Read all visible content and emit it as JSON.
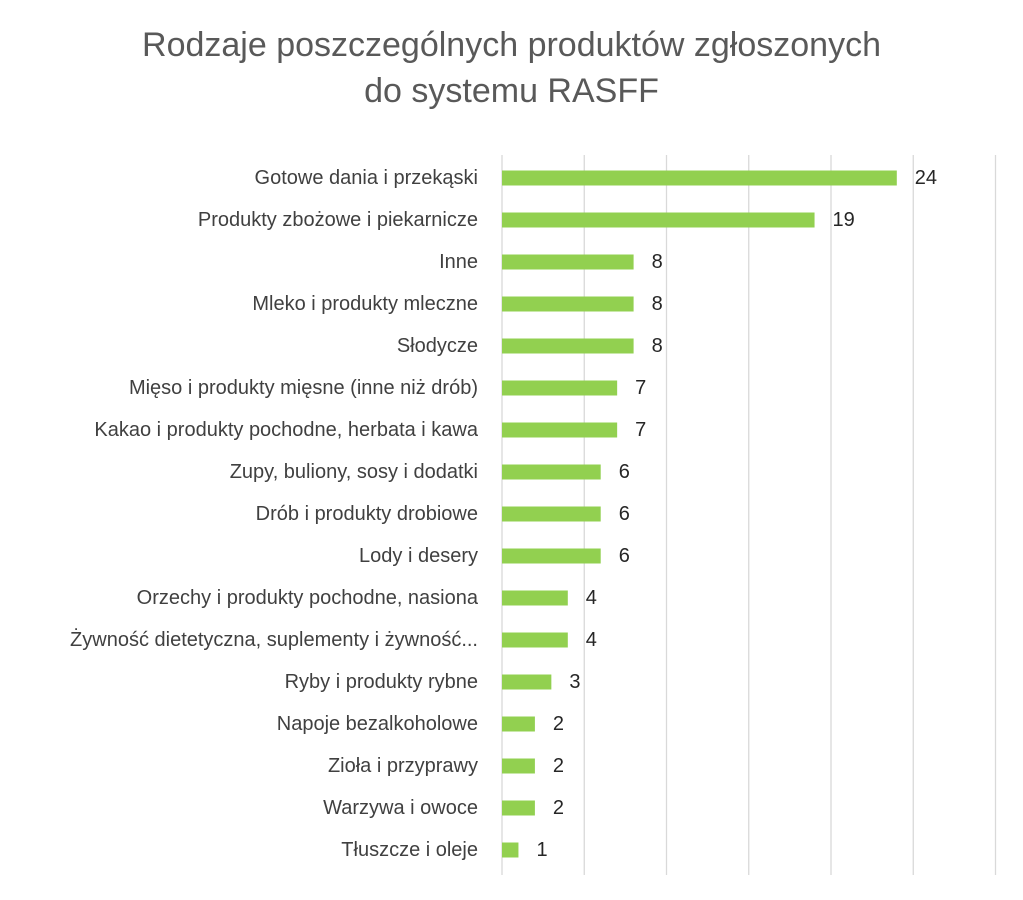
{
  "title_line1": "Rodzaje poszczególnych produktów zgłoszonych",
  "title_line2": "do systemu RASFF",
  "chart_data": {
    "type": "bar",
    "orientation": "horizontal",
    "title": "Rodzaje poszczególnych produktów zgłoszonych do systemu RASFF",
    "categories": [
      "Gotowe dania i przekąski",
      "Produkty zbożowe i piekarnicze",
      "Inne",
      "Mleko i produkty mleczne",
      "Słodycze",
      "Mięso i produkty mięsne (inne niż drób)",
      "Kakao i produkty pochodne, herbata i kawa",
      "Zupy, buliony, sosy i dodatki",
      "Drób i produkty drobiowe",
      "Lody i desery",
      "Orzechy i produkty pochodne, nasiona",
      "Żywność dietetyczna, suplementy i żywność...",
      "Ryby i produkty rybne",
      "Napoje bezalkoholowe",
      "Zioła i przyprawy",
      "Warzywa i owoce",
      "Tłuszcze i oleje"
    ],
    "values": [
      24,
      19,
      8,
      8,
      8,
      7,
      7,
      6,
      6,
      6,
      4,
      4,
      3,
      2,
      2,
      2,
      1
    ],
    "xlim": [
      0,
      30
    ],
    "grid": true,
    "data_labels": true,
    "bar_color": "#92D050",
    "grid_color": "#D9D9D9",
    "title_color": "#595959",
    "label_color": "#404040"
  }
}
